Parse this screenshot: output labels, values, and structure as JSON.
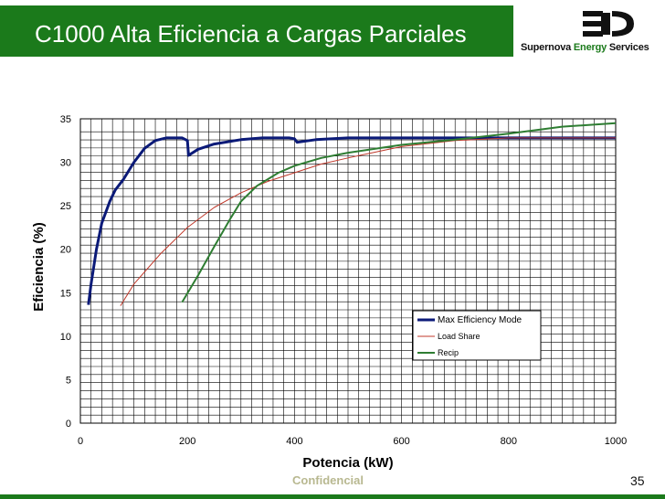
{
  "header": {
    "title": "C1000 Alta Eficiencia a Cargas Parciales"
  },
  "logo": {
    "brand_word": "Supernova",
    "brand_green": "Energy",
    "brand_tail": "Services"
  },
  "footer": {
    "confidential": "Confidencial",
    "page_number": "35"
  },
  "colors": {
    "header_green": "#1b7a1b",
    "max_eff": "#0b1a78",
    "load_share": "#c0392b",
    "recip": "#2e7d32"
  },
  "chart_data": {
    "type": "line",
    "title": "",
    "xlabel": "Potencia (kW)",
    "ylabel": "Eficiencia (%)",
    "xlim": [
      0,
      1000
    ],
    "ylim": [
      0,
      35
    ],
    "xticks": [
      0,
      200,
      400,
      600,
      800,
      1000
    ],
    "yticks": [
      0,
      5,
      10,
      15,
      20,
      25,
      30,
      35
    ],
    "grid": true,
    "legend_position": "right, lower",
    "series": [
      {
        "name": "Max Efficiency Mode",
        "color": "#0b1a78",
        "points": [
          [
            15,
            13.6
          ],
          [
            20,
            16
          ],
          [
            30,
            20
          ],
          [
            40,
            23
          ],
          [
            55,
            25.5
          ],
          [
            65,
            26.8
          ],
          [
            80,
            28
          ],
          [
            100,
            30
          ],
          [
            120,
            31.6
          ],
          [
            140,
            32.5
          ],
          [
            160,
            32.8
          ],
          [
            190,
            32.8
          ],
          [
            200,
            32.5
          ],
          [
            202,
            30.8
          ],
          [
            220,
            31.5
          ],
          [
            250,
            32.1
          ],
          [
            300,
            32.6
          ],
          [
            340,
            32.8
          ],
          [
            390,
            32.8
          ],
          [
            400,
            32.7
          ],
          [
            405,
            32.3
          ],
          [
            440,
            32.6
          ],
          [
            500,
            32.8
          ],
          [
            600,
            32.8
          ],
          [
            700,
            32.8
          ],
          [
            800,
            32.8
          ],
          [
            900,
            32.8
          ],
          [
            1000,
            32.8
          ]
        ]
      },
      {
        "name": "Load Share",
        "color": "#c0392b",
        "points": [
          [
            75,
            13.5
          ],
          [
            100,
            16
          ],
          [
            150,
            19.5
          ],
          [
            200,
            22.5
          ],
          [
            250,
            24.8
          ],
          [
            300,
            26.5
          ],
          [
            350,
            27.8
          ],
          [
            400,
            28.8
          ],
          [
            450,
            29.8
          ],
          [
            500,
            30.5
          ],
          [
            600,
            31.8
          ],
          [
            700,
            32.5
          ],
          [
            800,
            32.8
          ],
          [
            900,
            32.8
          ],
          [
            1000,
            32.8
          ]
        ]
      },
      {
        "name": "Recip",
        "color": "#2e7d32",
        "points": [
          [
            190,
            13.9
          ],
          [
            220,
            17
          ],
          [
            250,
            20.3
          ],
          [
            280,
            23.5
          ],
          [
            300,
            25.5
          ],
          [
            330,
            27.3
          ],
          [
            370,
            28.8
          ],
          [
            400,
            29.6
          ],
          [
            450,
            30.5
          ],
          [
            500,
            31.1
          ],
          [
            600,
            32
          ],
          [
            700,
            32.6
          ],
          [
            800,
            33.3
          ],
          [
            900,
            34.1
          ],
          [
            1000,
            34.5
          ]
        ]
      }
    ]
  }
}
